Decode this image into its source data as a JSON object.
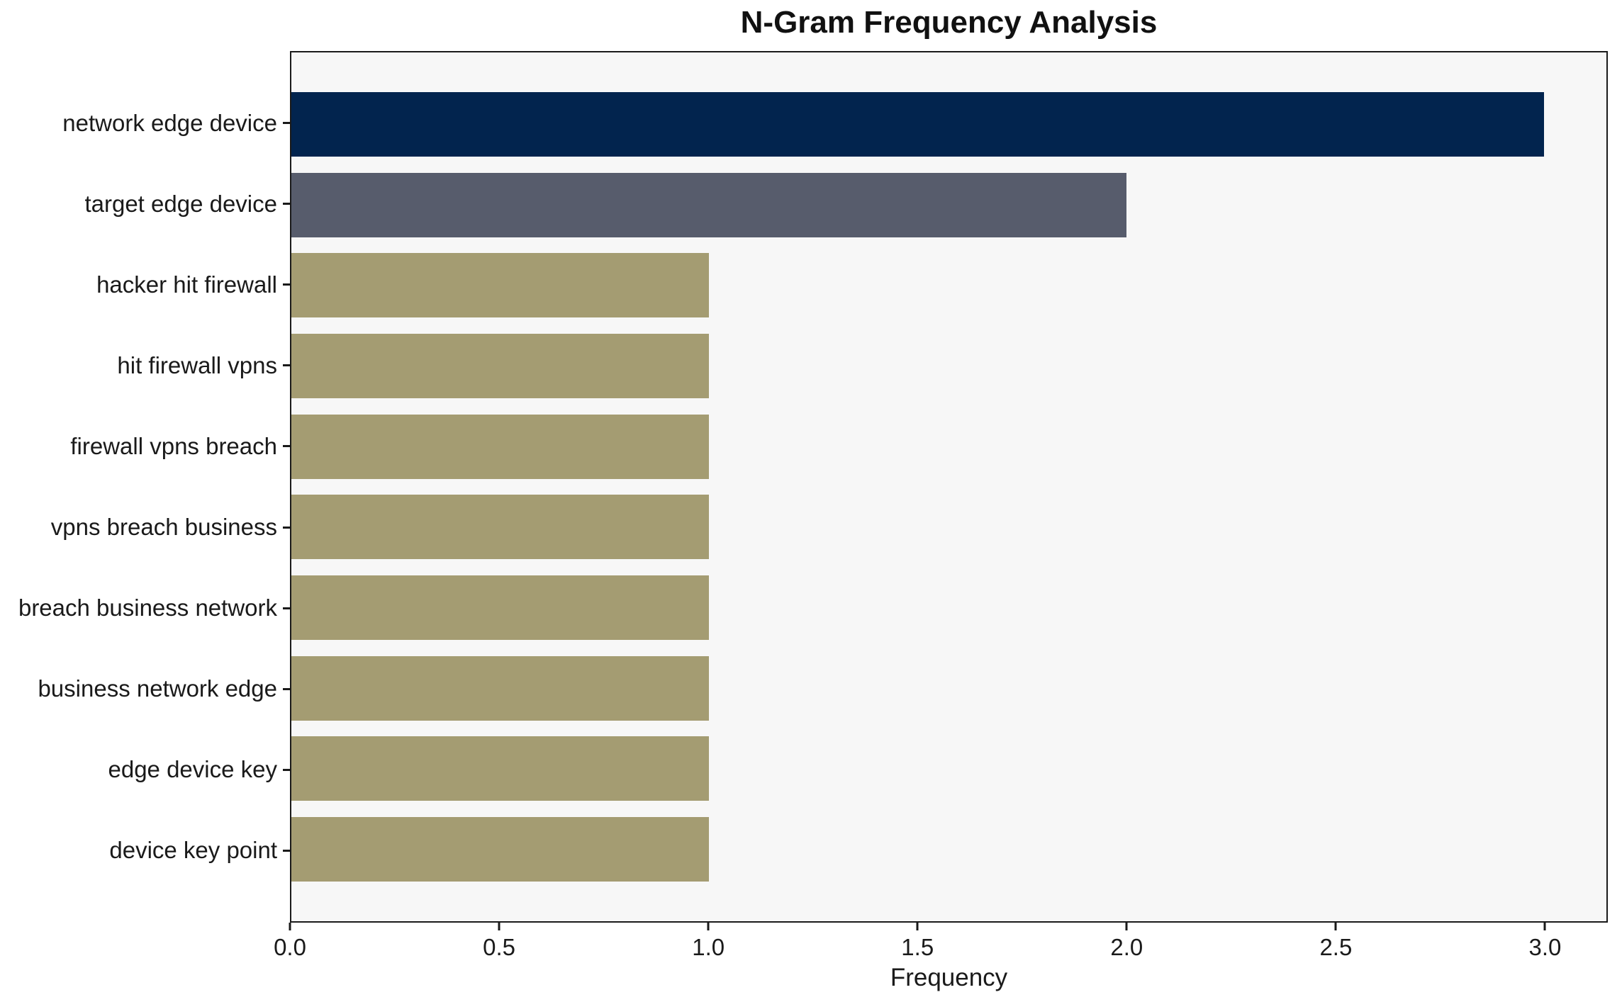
{
  "chart_data": {
    "type": "bar",
    "orientation": "horizontal",
    "title": "N-Gram Frequency Analysis",
    "xlabel": "Frequency",
    "ylabel": "",
    "categories": [
      "network edge device",
      "target edge device",
      "hacker hit firewall",
      "hit firewall vpns",
      "firewall vpns breach",
      "vpns breach business",
      "breach business network",
      "business network edge",
      "edge device key",
      "device key point"
    ],
    "values": [
      3,
      2,
      1,
      1,
      1,
      1,
      1,
      1,
      1,
      1
    ],
    "bar_colors": [
      "#02244e",
      "#575c6c",
      "#a49c72",
      "#a49c72",
      "#a49c72",
      "#a49c72",
      "#a49c72",
      "#a49c72",
      "#a49c72",
      "#a49c72"
    ],
    "xlim": [
      0,
      3.15
    ],
    "xticks": [
      0,
      0.5,
      1,
      1.5,
      2,
      2.5,
      3
    ],
    "xtick_labels": [
      "0.0",
      "0.5",
      "1.0",
      "1.5",
      "2.0",
      "2.5",
      "3.0"
    ],
    "grid": false,
    "legend": null,
    "colors": {
      "plot_background": "#f7f7f7",
      "figure_background": "#ffffff",
      "spine": "#1a1a1a",
      "text": "#1a1a1a"
    }
  }
}
